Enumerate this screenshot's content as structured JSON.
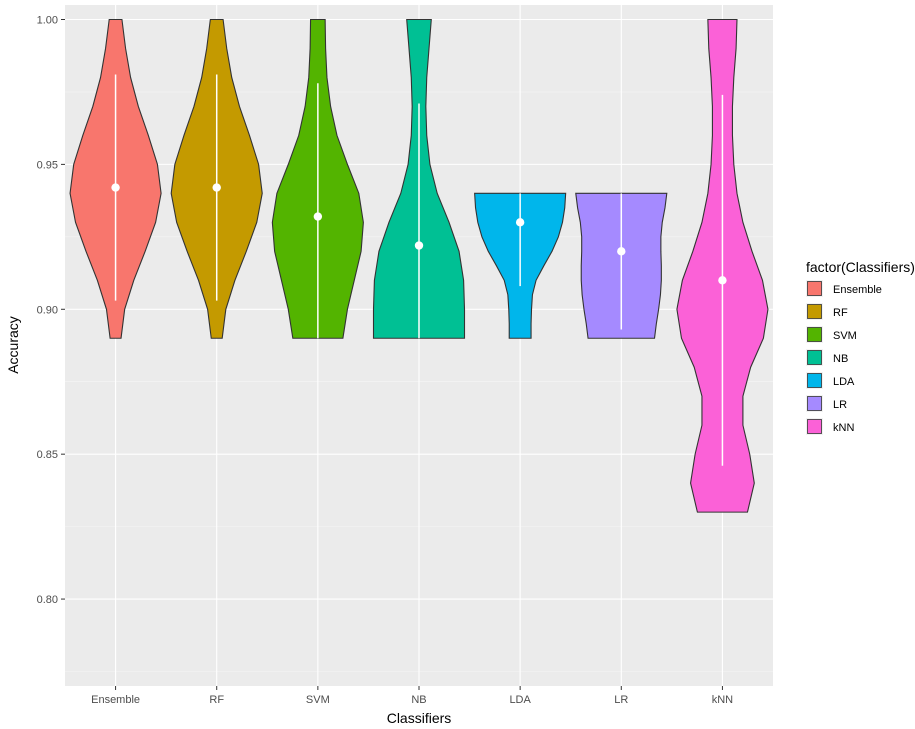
{
  "chart_data": {
    "type": "violin",
    "xlabel": "Classifiers",
    "ylabel": "Accuracy",
    "ylim": [
      0.77,
      1.005
    ],
    "y_ticks": [
      0.8,
      0.85,
      0.9,
      0.95,
      1.0
    ],
    "y_tick_labels": [
      "0.80",
      "0.85",
      "0.90",
      "0.95",
      "1.00"
    ],
    "categories": [
      "Ensemble",
      "RF",
      "SVM",
      "NB",
      "LDA",
      "LR",
      "kNN"
    ],
    "grid": true,
    "legend": {
      "title": "factor(Classifiers)",
      "position": "right",
      "entries": [
        "Ensemble",
        "RF",
        "SVM",
        "NB",
        "LDA",
        "LR",
        "kNN"
      ]
    },
    "series": [
      {
        "category": "Ensemble",
        "color": "#F8766D",
        "min": 0.89,
        "max": 1.0,
        "mean": 0.942,
        "sd_range": [
          0.903,
          0.981
        ],
        "profile": [
          [
            0.89,
            0.12
          ],
          [
            0.9,
            0.2
          ],
          [
            0.91,
            0.4
          ],
          [
            0.92,
            0.65
          ],
          [
            0.93,
            0.88
          ],
          [
            0.94,
            1.0
          ],
          [
            0.95,
            0.92
          ],
          [
            0.96,
            0.72
          ],
          [
            0.97,
            0.5
          ],
          [
            0.98,
            0.33
          ],
          [
            0.99,
            0.22
          ],
          [
            1.0,
            0.14
          ]
        ]
      },
      {
        "category": "RF",
        "color": "#C49A00",
        "min": 0.89,
        "max": 1.0,
        "mean": 0.942,
        "sd_range": [
          0.903,
          0.981
        ],
        "profile": [
          [
            0.89,
            0.12
          ],
          [
            0.9,
            0.2
          ],
          [
            0.91,
            0.4
          ],
          [
            0.92,
            0.65
          ],
          [
            0.93,
            0.88
          ],
          [
            0.94,
            1.0
          ],
          [
            0.95,
            0.92
          ],
          [
            0.96,
            0.72
          ],
          [
            0.97,
            0.5
          ],
          [
            0.98,
            0.33
          ],
          [
            0.99,
            0.22
          ],
          [
            1.0,
            0.14
          ]
        ]
      },
      {
        "category": "SVM",
        "color": "#53B400",
        "min": 0.89,
        "max": 1.0,
        "mean": 0.932,
        "sd_range": [
          0.89,
          0.978
        ],
        "profile": [
          [
            0.89,
            0.55
          ],
          [
            0.9,
            0.65
          ],
          [
            0.91,
            0.8
          ],
          [
            0.92,
            0.95
          ],
          [
            0.93,
            1.0
          ],
          [
            0.94,
            0.9
          ],
          [
            0.95,
            0.65
          ],
          [
            0.96,
            0.42
          ],
          [
            0.97,
            0.28
          ],
          [
            0.98,
            0.2
          ],
          [
            0.99,
            0.17
          ],
          [
            1.0,
            0.16
          ]
        ]
      },
      {
        "category": "NB",
        "color": "#00C094",
        "min": 0.89,
        "max": 1.0,
        "mean": 0.922,
        "sd_range": [
          0.89,
          0.971
        ],
        "profile": [
          [
            0.89,
            1.0
          ],
          [
            0.9,
            1.0
          ],
          [
            0.91,
            0.98
          ],
          [
            0.92,
            0.88
          ],
          [
            0.93,
            0.66
          ],
          [
            0.94,
            0.4
          ],
          [
            0.95,
            0.24
          ],
          [
            0.96,
            0.17
          ],
          [
            0.97,
            0.15
          ],
          [
            0.98,
            0.17
          ],
          [
            0.99,
            0.22
          ],
          [
            1.0,
            0.27
          ]
        ]
      },
      {
        "category": "LDA",
        "color": "#00B6EB",
        "min": 0.89,
        "max": 0.94,
        "mean": 0.93,
        "sd_range": [
          0.908,
          0.94
        ],
        "profile": [
          [
            0.89,
            0.24
          ],
          [
            0.895,
            0.24
          ],
          [
            0.9,
            0.25
          ],
          [
            0.905,
            0.27
          ],
          [
            0.91,
            0.35
          ],
          [
            0.915,
            0.52
          ],
          [
            0.92,
            0.7
          ],
          [
            0.925,
            0.84
          ],
          [
            0.93,
            0.93
          ],
          [
            0.935,
            0.98
          ],
          [
            0.94,
            1.0
          ]
        ]
      },
      {
        "category": "LR",
        "color": "#A58AFF",
        "min": 0.89,
        "max": 0.94,
        "mean": 0.92,
        "sd_range": [
          0.893,
          0.94
        ],
        "profile": [
          [
            0.89,
            0.73
          ],
          [
            0.895,
            0.77
          ],
          [
            0.9,
            0.82
          ],
          [
            0.905,
            0.86
          ],
          [
            0.91,
            0.88
          ],
          [
            0.915,
            0.88
          ],
          [
            0.92,
            0.87
          ],
          [
            0.925,
            0.87
          ],
          [
            0.93,
            0.9
          ],
          [
            0.935,
            0.96
          ],
          [
            0.94,
            1.0
          ]
        ]
      },
      {
        "category": "kNN",
        "color": "#FB61D7",
        "min": 0.83,
        "max": 1.0,
        "mean": 0.91,
        "sd_range": [
          0.846,
          0.974
        ],
        "profile": [
          [
            0.83,
            0.55
          ],
          [
            0.84,
            0.7
          ],
          [
            0.85,
            0.6
          ],
          [
            0.86,
            0.45
          ],
          [
            0.87,
            0.45
          ],
          [
            0.88,
            0.62
          ],
          [
            0.89,
            0.9
          ],
          [
            0.9,
            1.0
          ],
          [
            0.91,
            0.88
          ],
          [
            0.92,
            0.65
          ],
          [
            0.93,
            0.45
          ],
          [
            0.94,
            0.32
          ],
          [
            0.95,
            0.25
          ],
          [
            0.96,
            0.22
          ],
          [
            0.97,
            0.22
          ],
          [
            0.98,
            0.25
          ],
          [
            0.99,
            0.3
          ],
          [
            1.0,
            0.32
          ]
        ]
      }
    ]
  }
}
